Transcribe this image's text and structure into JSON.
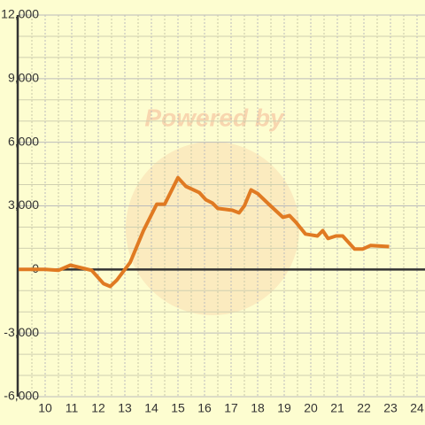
{
  "chart_data": {
    "type": "line",
    "watermark": "Powered by",
    "x": [
      9,
      10,
      10.5,
      10.95,
      11.75,
      12.2,
      12.45,
      12.7,
      13.2,
      13.7,
      14.2,
      14.5,
      15,
      15.3,
      15.8,
      16.05,
      16.3,
      16.5,
      17.05,
      17.3,
      17.5,
      17.75,
      18,
      18.45,
      18.95,
      19.2,
      19.45,
      19.8,
      20.25,
      20.45,
      20.65,
      20.95,
      21.2,
      21.65,
      21.95,
      22.25,
      22.95
    ],
    "values": [
      0,
      0,
      -40,
      200,
      -40,
      -670,
      -800,
      -500,
      330,
      1830,
      3080,
      3080,
      4330,
      3920,
      3630,
      3290,
      3130,
      2880,
      2790,
      2670,
      3000,
      3750,
      3580,
      3040,
      2460,
      2540,
      2210,
      1670,
      1580,
      1830,
      1460,
      1580,
      1580,
      960,
      960,
      1130,
      1080
    ],
    "color": "#e07a22",
    "xlim": [
      9,
      24.3
    ],
    "xticks": [
      10,
      11,
      12,
      13,
      14,
      15,
      16,
      17,
      18,
      19,
      20,
      21,
      22,
      23,
      24
    ],
    "ylim": [
      -6000,
      12000
    ],
    "yticks": [
      {
        "value": -6000,
        "label": "-6,000"
      },
      {
        "value": -3000,
        "label": "-3,000"
      },
      0,
      {
        "value": 3000,
        "label": "3,000"
      },
      {
        "value": 6000,
        "label": "6,000"
      },
      {
        "value": 9000,
        "label": "9,000"
      },
      {
        "value": 12000,
        "label": "12,000"
      }
    ],
    "grid": true
  }
}
